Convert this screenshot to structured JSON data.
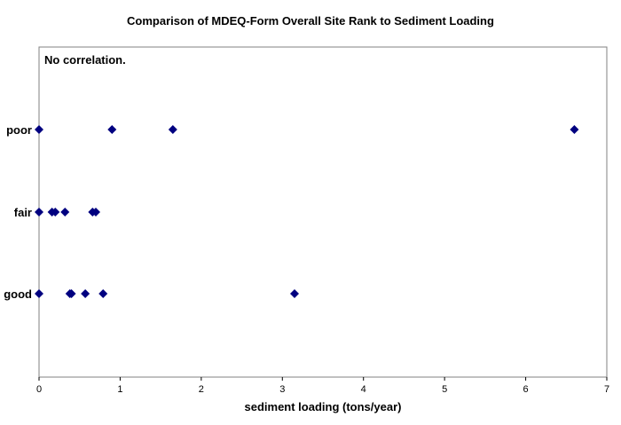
{
  "chart_data": {
    "type": "scatter",
    "title": "Comparison of MDEQ-Form Overall Site Rank to Sediment Loading",
    "xlabel": "sediment loading (tons/year)",
    "ylabel": "",
    "xlim": [
      0,
      7
    ],
    "x_ticks": [
      0,
      1,
      2,
      3,
      4,
      5,
      6,
      7
    ],
    "y_categories": [
      "good",
      "fair",
      "poor"
    ],
    "annotation": "No correlation.",
    "grid": false,
    "legend": "none",
    "marker": "diamond",
    "marker_color": "#000080",
    "points": [
      {
        "x": 0.0,
        "y": "poor"
      },
      {
        "x": 0.9,
        "y": "poor"
      },
      {
        "x": 1.65,
        "y": "poor"
      },
      {
        "x": 6.6,
        "y": "poor"
      },
      {
        "x": 0.0,
        "y": "fair"
      },
      {
        "x": 0.16,
        "y": "fair"
      },
      {
        "x": 0.2,
        "y": "fair"
      },
      {
        "x": 0.32,
        "y": "fair"
      },
      {
        "x": 0.66,
        "y": "fair"
      },
      {
        "x": 0.7,
        "y": "fair"
      },
      {
        "x": 0.0,
        "y": "good"
      },
      {
        "x": 0.38,
        "y": "good"
      },
      {
        "x": 0.4,
        "y": "good"
      },
      {
        "x": 0.57,
        "y": "good"
      },
      {
        "x": 0.79,
        "y": "good"
      },
      {
        "x": 3.15,
        "y": "good"
      }
    ]
  }
}
